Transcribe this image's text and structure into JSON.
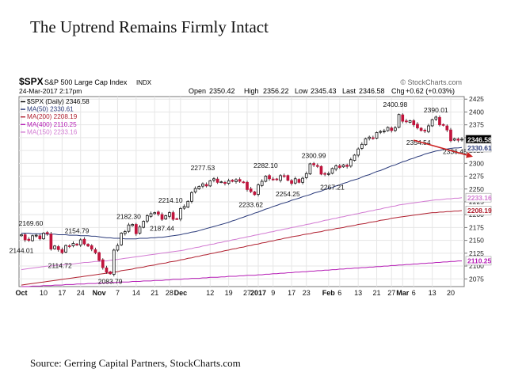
{
  "page": {
    "title": "The Uptrend Remains Firmly Intact",
    "source": "Source: Gerring Capital Partners, StockCharts.com"
  },
  "chart_data": {
    "type": "candlestick",
    "symbol": "$SPX",
    "name": "S&P 500 Large Cap Index",
    "exchange": "INDX",
    "date_line": "24-Mar-2017 2:17pm",
    "watermark": "© StockCharts.com",
    "ohlc": {
      "open_label": "Open",
      "open": "2350.42",
      "high_label": "High",
      "high": "2356.22",
      "low_label": "Low",
      "low": "2345.43",
      "last_label": "Last",
      "last": "2346.58",
      "chg_label": "Chg",
      "chg": "+0.62 (+0.03%)"
    },
    "legend": [
      {
        "label": "$SPX (Daily) 2346.58",
        "color": "#000000"
      },
      {
        "label": "MA(50) 2330.61",
        "color": "#2a3a7a"
      },
      {
        "label": "MA(200) 2208.19",
        "color": "#b02030"
      },
      {
        "label": "MA(400) 2110.25",
        "color": "#b51cb5"
      },
      {
        "label": "MA(150) 2233.16",
        "color": "#d27ad2"
      }
    ],
    "ylim": [
      2060,
      2430
    ],
    "yticks": [
      2075,
      2100,
      2125,
      2150,
      2175,
      2200,
      2225,
      2250,
      2275,
      2300,
      2325,
      2350,
      2375,
      2400,
      2425
    ],
    "xticks": [
      {
        "i": 0,
        "label": "Oct",
        "bold": true
      },
      {
        "i": 6,
        "label": "10",
        "bold": false
      },
      {
        "i": 11,
        "label": "17",
        "bold": false
      },
      {
        "i": 16,
        "label": "24",
        "bold": false
      },
      {
        "i": 21,
        "label": "Nov",
        "bold": true
      },
      {
        "i": 26,
        "label": "7",
        "bold": false
      },
      {
        "i": 31,
        "label": "14",
        "bold": false
      },
      {
        "i": 36,
        "label": "21",
        "bold": false
      },
      {
        "i": 40,
        "label": "28",
        "bold": false
      },
      {
        "i": 43,
        "label": "Dec",
        "bold": true
      },
      {
        "i": 51,
        "label": "12",
        "bold": false
      },
      {
        "i": 56,
        "label": "19",
        "bold": false
      },
      {
        "i": 61,
        "label": "27",
        "bold": false
      },
      {
        "i": 64,
        "label": "2017",
        "bold": true
      },
      {
        "i": 68,
        "label": "9",
        "bold": false
      },
      {
        "i": 73,
        "label": "17",
        "bold": false
      },
      {
        "i": 77,
        "label": "23",
        "bold": false
      },
      {
        "i": 83,
        "label": "Feb",
        "bold": true
      },
      {
        "i": 86,
        "label": "6",
        "bold": false
      },
      {
        "i": 91,
        "label": "13",
        "bold": false
      },
      {
        "i": 96,
        "label": "21",
        "bold": false
      },
      {
        "i": 100,
        "label": "27",
        "bold": false
      },
      {
        "i": 103,
        "label": "Mar",
        "bold": true
      },
      {
        "i": 106,
        "label": "6",
        "bold": false
      },
      {
        "i": 111,
        "label": "13",
        "bold": false
      },
      {
        "i": 116,
        "label": "20",
        "bold": false
      }
    ],
    "closes": [
      2161,
      2151,
      2150,
      2159,
      2160,
      2153,
      2164,
      2163,
      2133,
      2139,
      2132,
      2126,
      2140,
      2139,
      2144,
      2141,
      2151,
      2143,
      2139,
      2133,
      2126,
      2111,
      2097,
      2088,
      2085,
      2131,
      2140,
      2164,
      2167,
      2180,
      2181,
      2163,
      2176,
      2187,
      2198,
      2202,
      2204,
      2201,
      2191,
      2198,
      2204,
      2191,
      2192,
      2212,
      2216,
      2226,
      2243,
      2251,
      2255,
      2260,
      2256,
      2266,
      2270,
      2263,
      2264,
      2261,
      2266,
      2265,
      2268,
      2265,
      2263,
      2249,
      2245,
      2239,
      2258,
      2265,
      2275,
      2270,
      2269,
      2268,
      2276,
      2275,
      2267,
      2261,
      2270,
      2263,
      2271,
      2280,
      2299,
      2297,
      2294,
      2279,
      2279,
      2280,
      2290,
      2295,
      2292,
      2297,
      2294,
      2307,
      2316,
      2328,
      2337,
      2348,
      2351,
      2349,
      2360,
      2362,
      2363,
      2370,
      2364,
      2369,
      2395,
      2382,
      2381,
      2383,
      2375,
      2369,
      2364,
      2363,
      2373,
      2385,
      2390,
      2375,
      2374,
      2365,
      2344,
      2348,
      2345,
      2347
    ],
    "ma50": [
      2164,
      2164,
      2164,
      2163,
      2163,
      2163,
      2163,
      2162,
      2162,
      2162,
      2161,
      2161,
      2161,
      2160,
      2160,
      2160,
      2159,
      2159,
      2159,
      2158,
      2158,
      2157,
      2156,
      2155,
      2155,
      2154,
      2154,
      2154,
      2153,
      2153,
      2153,
      2153,
      2154,
      2154,
      2154,
      2155,
      2155,
      2156,
      2156,
      2157,
      2158,
      2159,
      2160,
      2161,
      2163,
      2164,
      2166,
      2167,
      2169,
      2171,
      2173,
      2175,
      2177,
      2179,
      2181,
      2183,
      2185,
      2188,
      2190,
      2193,
      2195,
      2198,
      2200,
      2203,
      2205,
      2208,
      2211,
      2213,
      2216,
      2218,
      2221,
      2223,
      2225,
      2228,
      2230,
      2232,
      2235,
      2237,
      2239,
      2242,
      2244,
      2246,
      2249,
      2251,
      2253,
      2256,
      2258,
      2261,
      2263,
      2266,
      2268,
      2270,
      2273,
      2276,
      2278,
      2281,
      2284,
      2286,
      2289,
      2292,
      2295,
      2297,
      2300,
      2303,
      2305,
      2308,
      2310,
      2313,
      2315,
      2318,
      2320,
      2322,
      2324,
      2325,
      2327,
      2328,
      2329,
      2330,
      2330,
      2331
    ],
    "ma150": [
      2093,
      2094,
      2095,
      2096,
      2097,
      2098,
      2099,
      2100,
      2100,
      2101,
      2102,
      2102,
      2103,
      2104,
      2104,
      2105,
      2106,
      2107,
      2107,
      2108,
      2109,
      2109,
      2110,
      2110,
      2111,
      2112,
      2113,
      2114,
      2115,
      2116,
      2117,
      2118,
      2119,
      2120,
      2121,
      2122,
      2123,
      2124,
      2125,
      2126,
      2127,
      2128,
      2129,
      2130,
      2131,
      2133,
      2134,
      2136,
      2137,
      2139,
      2140,
      2142,
      2143,
      2145,
      2146,
      2148,
      2149,
      2151,
      2152,
      2154,
      2155,
      2157,
      2158,
      2160,
      2161,
      2163,
      2164,
      2166,
      2167,
      2169,
      2170,
      2172,
      2173,
      2175,
      2176,
      2178,
      2179,
      2181,
      2182,
      2184,
      2185,
      2187,
      2189,
      2190,
      2192,
      2193,
      2195,
      2196,
      2198,
      2199,
      2201,
      2202,
      2204,
      2205,
      2207,
      2208,
      2210,
      2211,
      2213,
      2214,
      2216,
      2217,
      2219,
      2220,
      2221,
      2222,
      2223,
      2224,
      2225,
      2226,
      2227,
      2228,
      2229,
      2229,
      2230,
      2231,
      2231,
      2232,
      2232,
      2233
    ],
    "ma200": [
      2063,
      2064,
      2065,
      2066,
      2067,
      2068,
      2069,
      2070,
      2071,
      2072,
      2073,
      2074,
      2075,
      2076,
      2077,
      2078,
      2079,
      2080,
      2081,
      2082,
      2083,
      2084,
      2085,
      2086,
      2087,
      2088,
      2089,
      2091,
      2092,
      2093,
      2094,
      2096,
      2097,
      2098,
      2100,
      2101,
      2102,
      2104,
      2105,
      2106,
      2108,
      2109,
      2110,
      2112,
      2113,
      2115,
      2116,
      2118,
      2119,
      2121,
      2122,
      2124,
      2125,
      2127,
      2128,
      2130,
      2131,
      2133,
      2134,
      2136,
      2137,
      2139,
      2140,
      2142,
      2143,
      2145,
      2146,
      2148,
      2149,
      2151,
      2152,
      2154,
      2155,
      2157,
      2158,
      2159,
      2161,
      2162,
      2163,
      2165,
      2166,
      2167,
      2169,
      2170,
      2171,
      2173,
      2174,
      2175,
      2177,
      2178,
      2179,
      2181,
      2182,
      2183,
      2185,
      2186,
      2187,
      2189,
      2190,
      2191,
      2193,
      2194,
      2195,
      2196,
      2197,
      2198,
      2199,
      2200,
      2201,
      2202,
      2203,
      2204,
      2204,
      2205,
      2205,
      2206,
      2206,
      2207,
      2207,
      2208
    ],
    "ma400": [
      2060,
      2060,
      2060,
      2061,
      2061,
      2061,
      2062,
      2062,
      2062,
      2063,
      2063,
      2063,
      2064,
      2064,
      2064,
      2065,
      2065,
      2065,
      2066,
      2066,
      2066,
      2067,
      2067,
      2067,
      2068,
      2068,
      2068,
      2069,
      2069,
      2069,
      2070,
      2070,
      2070,
      2071,
      2071,
      2071,
      2072,
      2072,
      2072,
      2073,
      2073,
      2074,
      2074,
      2074,
      2075,
      2075,
      2076,
      2076,
      2076,
      2077,
      2077,
      2078,
      2078,
      2078,
      2079,
      2079,
      2080,
      2080,
      2080,
      2081,
      2081,
      2082,
      2082,
      2082,
      2083,
      2083,
      2084,
      2084,
      2085,
      2085,
      2086,
      2086,
      2087,
      2087,
      2088,
      2088,
      2089,
      2089,
      2090,
      2090,
      2091,
      2091,
      2092,
      2092,
      2093,
      2093,
      2094,
      2094,
      2095,
      2095,
      2096,
      2096,
      2097,
      2097,
      2098,
      2098,
      2099,
      2099,
      2100,
      2100,
      2101,
      2101,
      2102,
      2102,
      2103,
      2103,
      2104,
      2104,
      2105,
      2105,
      2106,
      2106,
      2107,
      2107,
      2108,
      2108,
      2109,
      2109,
      2110,
      2110
    ],
    "annotations": [
      {
        "i": 0,
        "value": 2169.6,
        "text": "2169.60",
        "pos": "above",
        "dx": 12
      },
      {
        "i": 0,
        "value": 2144.01,
        "text": "2144.01",
        "pos": "below",
        "dx": 0
      },
      {
        "i": 10,
        "value": 2114.72,
        "text": "2114.72",
        "pos": "below",
        "dx": 2
      },
      {
        "i": 15,
        "value": 2154.79,
        "text": "2154.79",
        "pos": "above",
        "dx": 0
      },
      {
        "i": 24,
        "value": 2083.79,
        "text": "2083.79",
        "pos": "below",
        "dx": 0
      },
      {
        "i": 29,
        "value": 2182.3,
        "text": "2182.30",
        "pos": "above",
        "dx": 0
      },
      {
        "i": 38,
        "value": 2187.44,
        "text": "2187.44",
        "pos": "below",
        "dx": 0
      },
      {
        "i": 42,
        "value": 2214.1,
        "text": "2214.10",
        "pos": "above",
        "dx": -8
      },
      {
        "i": 49,
        "value": 2277.53,
        "text": "2277.53",
        "pos": "above",
        "dx": 0
      },
      {
        "i": 62,
        "value": 2233.62,
        "text": "2233.62",
        "pos": "below",
        "dx": 0
      },
      {
        "i": 66,
        "value": 2282.1,
        "text": "2282.10",
        "pos": "above",
        "dx": 0
      },
      {
        "i": 72,
        "value": 2254.25,
        "text": "2254.25",
        "pos": "below",
        "dx": 0
      },
      {
        "i": 79,
        "value": 2300.99,
        "text": "2300.99",
        "pos": "above",
        "dx": 0
      },
      {
        "i": 84,
        "value": 2267.21,
        "text": "2267.21",
        "pos": "below",
        "dx": 0
      },
      {
        "i": 101,
        "value": 2400.98,
        "text": "2400.98",
        "pos": "above",
        "dx": 0
      },
      {
        "i": 112,
        "value": 2390.01,
        "text": "2390.01",
        "pos": "above",
        "dx": 0
      },
      {
        "i": 109,
        "value": 2354.54,
        "text": "2354.54",
        "pos": "below",
        "dx": -8
      },
      {
        "i": 118,
        "value": 2336.45,
        "text": "2336.45",
        "pos": "below",
        "dx": -4
      }
    ],
    "right_labels": [
      {
        "value": 2346.58,
        "text": "2346.58",
        "bg": "#000000",
        "fg": "#ffffff"
      },
      {
        "value": 2330.61,
        "text": "2330.61",
        "bg": "#ffffff",
        "fg": "#2a3a7a"
      },
      {
        "value": 2233.16,
        "text": "2233.16",
        "bg": "#ffffff",
        "fg": "#d27ad2"
      },
      {
        "value": 2208.19,
        "text": "2208.19",
        "bg": "#ffffff",
        "fg": "#b02030"
      },
      {
        "value": 2110.25,
        "text": "2110.25",
        "bg": "#ffffff",
        "fg": "#b51cb5"
      }
    ],
    "arrow": {
      "from": {
        "i": 106,
        "value": 2345
      },
      "to": {
        "i": 122,
        "value": 2313
      },
      "color": "#cc1f1f"
    }
  }
}
